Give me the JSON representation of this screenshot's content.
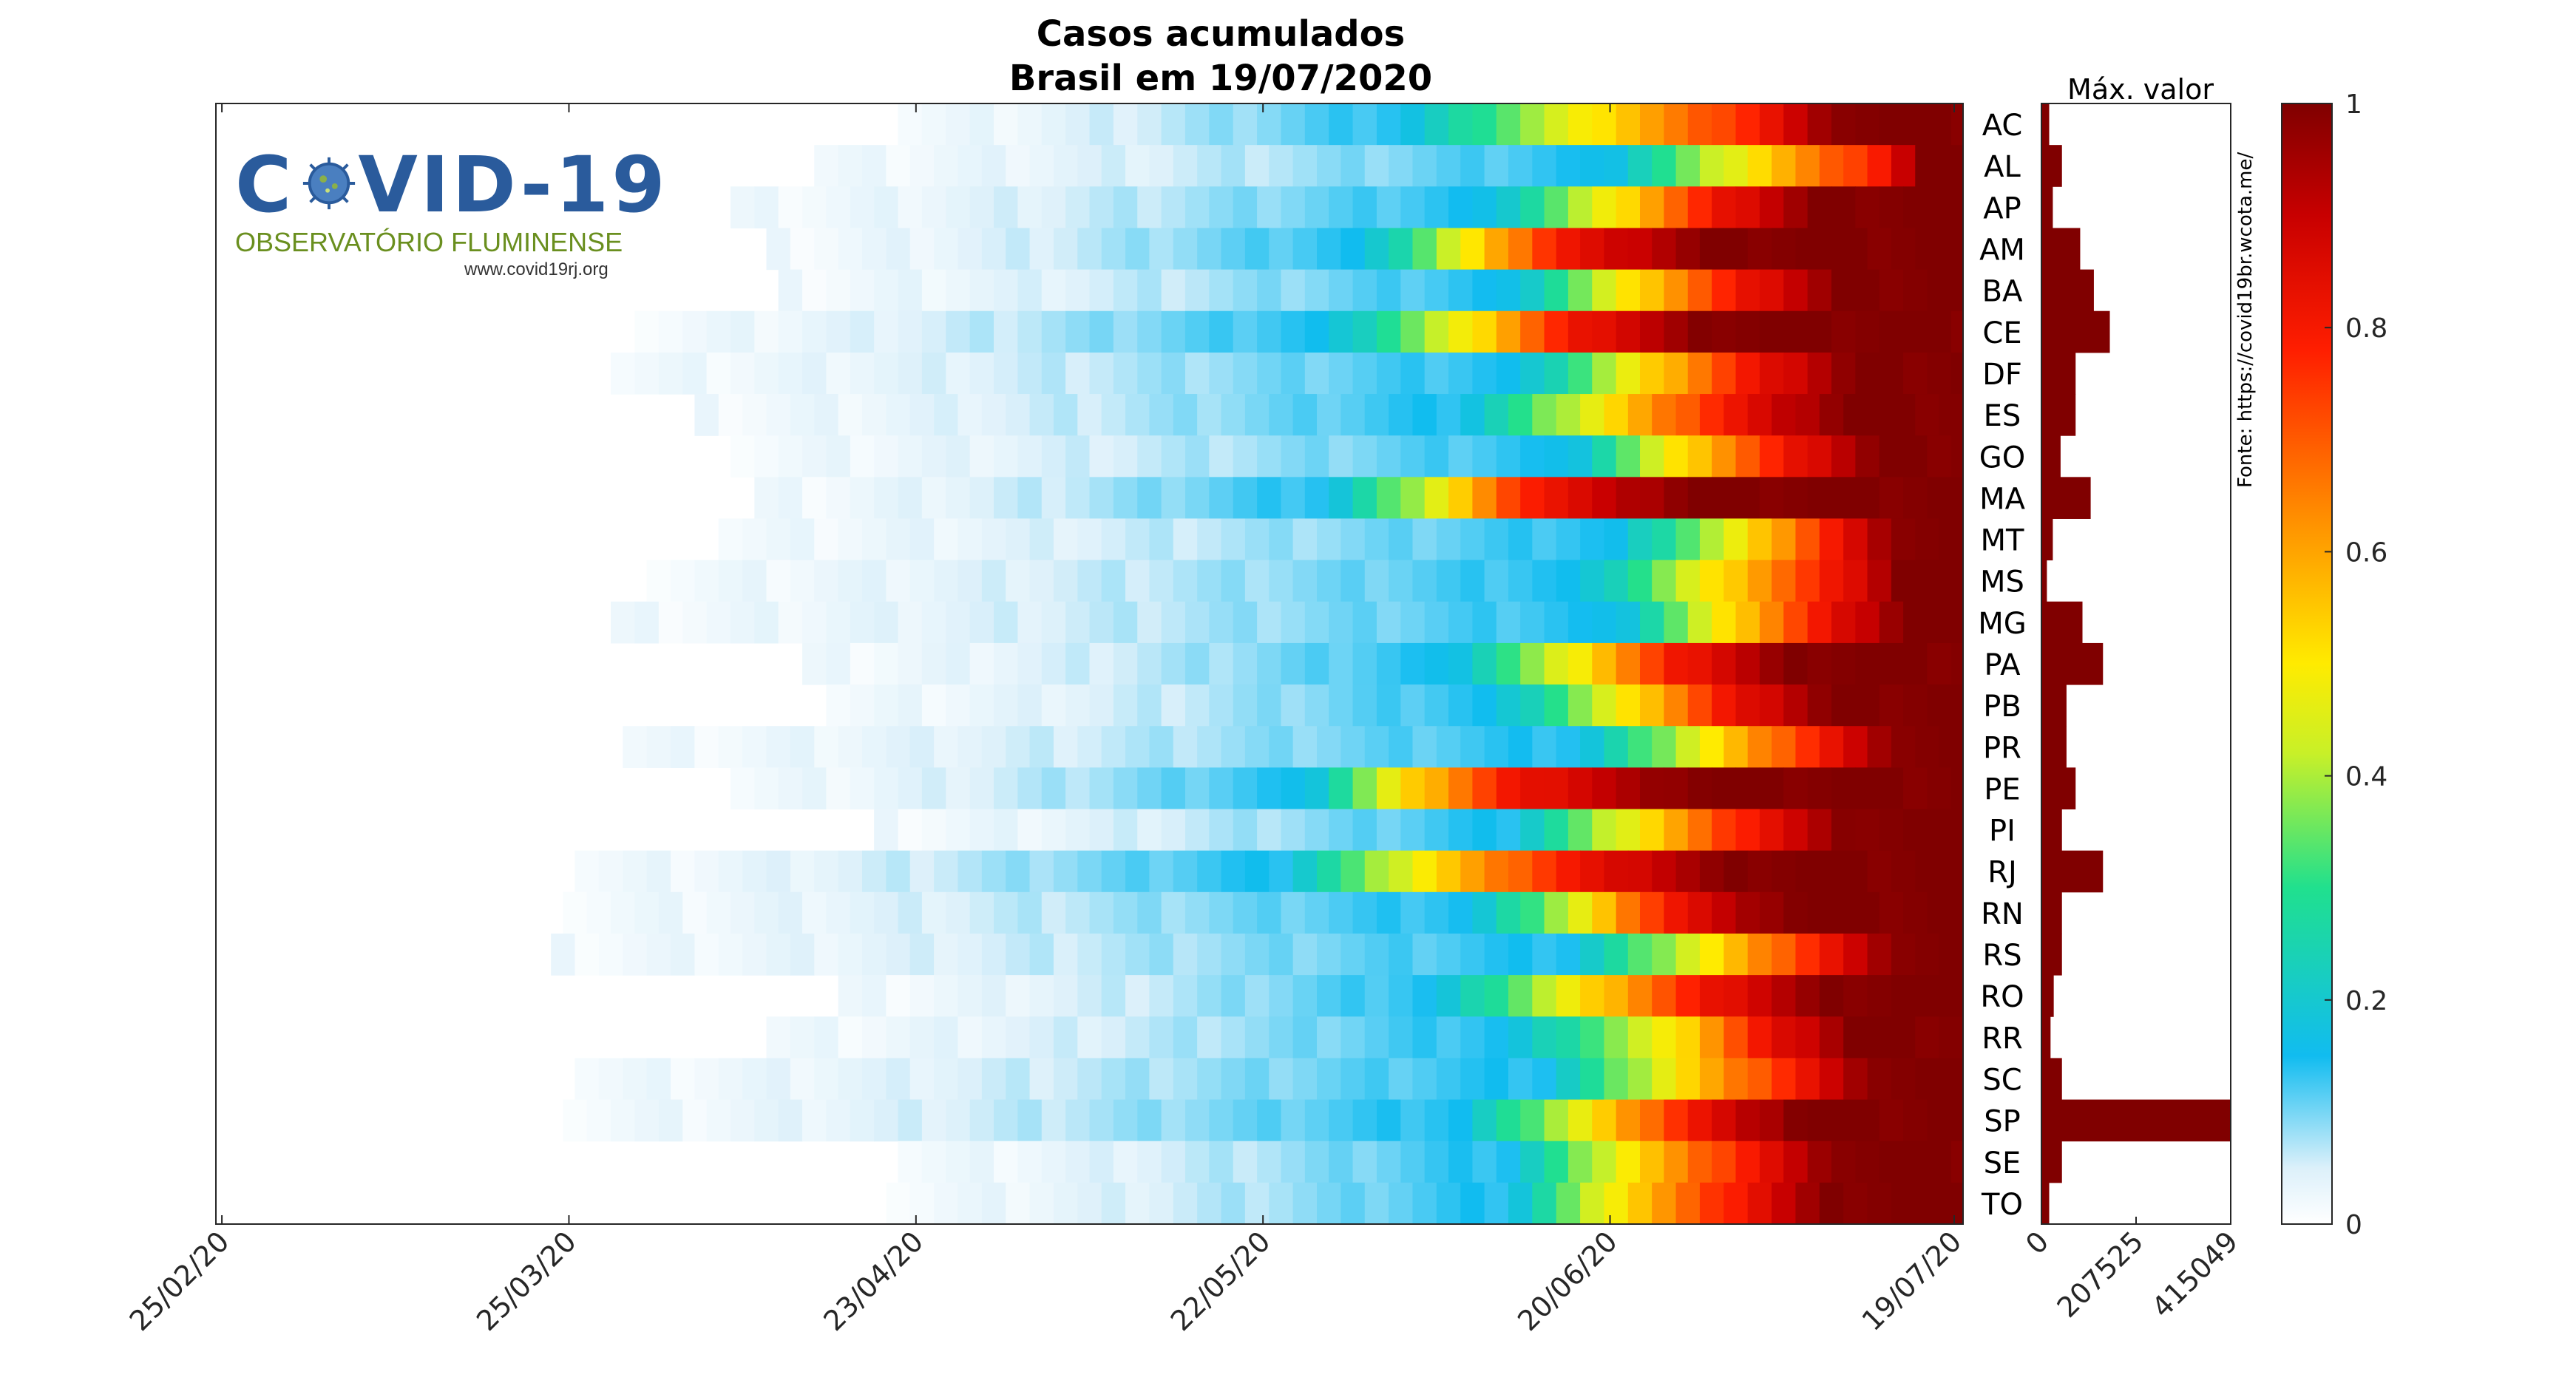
{
  "chart_data": {
    "type": "heatmap",
    "title": "Casos acumulados",
    "subtitle": "Brasil em 19/07/2020",
    "x_ticks": [
      "25/02/20",
      "25/03/20",
      "23/04/20",
      "22/05/20",
      "20/06/20",
      "19/07/20"
    ],
    "x_range": [
      "25/02/20",
      "19/07/20"
    ],
    "rows": [
      "AC",
      "AL",
      "AP",
      "AM",
      "BA",
      "CE",
      "DF",
      "ES",
      "GO",
      "MA",
      "MT",
      "MS",
      "MG",
      "PA",
      "PB",
      "PR",
      "PE",
      "PI",
      "RJ",
      "RN",
      "RS",
      "RO",
      "RR",
      "SC",
      "SP",
      "SE",
      "TO"
    ],
    "colorbar": {
      "label": "",
      "min": 0,
      "max": 1,
      "ticks": [
        "0",
        "0.2",
        "0.4",
        "0.6",
        "0.8",
        "1"
      ],
      "colormap": "jet-white"
    },
    "bar_panel": {
      "title": "Máx. valor",
      "ticks": [
        "0",
        "207525",
        "415049"
      ],
      "xlim": [
        0,
        415049
      ],
      "values": [
        17000,
        45000,
        25000,
        85000,
        115000,
        150000,
        75000,
        75000,
        42000,
        108000,
        25000,
        12000,
        90000,
        135000,
        55000,
        55000,
        75000,
        45000,
        135000,
        45000,
        45000,
        27000,
        20000,
        45000,
        415049,
        45000,
        17000
      ]
    },
    "onset_day": [
      57,
      50,
      43,
      46,
      47,
      35,
      33,
      40,
      43,
      45,
      42,
      36,
      33,
      49,
      51,
      34,
      43,
      55,
      30,
      29,
      28,
      52,
      46,
      30,
      29,
      57,
      56
    ],
    "cutoffs": [
      [
        98,
        114,
        128,
        135
      ],
      [
        115,
        127,
        138,
        142
      ],
      [
        105,
        116,
        124,
        133
      ],
      [
        95,
        104,
        111,
        124
      ],
      [
        107,
        117,
        126,
        135
      ],
      [
        92,
        104,
        112,
        124
      ],
      [
        108,
        118,
        127,
        136
      ],
      [
        103,
        115,
        125,
        135
      ],
      [
        112,
        121,
        130,
        138
      ],
      [
        92,
        102,
        109,
        122
      ],
      [
        116,
        127,
        134,
        140
      ],
      [
        113,
        124,
        134,
        140
      ],
      [
        116,
        125,
        133,
        140
      ],
      [
        102,
        113,
        121,
        131
      ],
      [
        106,
        117,
        125,
        134
      ],
      [
        113,
        124,
        133,
        140
      ],
      [
        90,
        98,
        107,
        122
      ],
      [
        107,
        118,
        127,
        136
      ],
      [
        88,
        100,
        112,
        126
      ],
      [
        104,
        114,
        120,
        130
      ],
      [
        112,
        124,
        133,
        140
      ],
      [
        101,
        113,
        123,
        134
      ],
      [
        107,
        121,
        128,
        136
      ],
      [
        110,
        121,
        131,
        138
      ],
      [
        103,
        114,
        122,
        131
      ],
      [
        107,
        117,
        127,
        135
      ],
      [
        107,
        116,
        126,
        134
      ]
    ],
    "source": "Fonte: https://covid19br.wcota.me/"
  },
  "logo": {
    "text_pre": "C",
    "text_post": "VID-19",
    "subtitle": "OBSERVATÓRIO FLUMINENSE",
    "url": "www.covid19rj.org"
  },
  "colors": {
    "logo_blue": "#2a5b9c",
    "logo_green": "#6a8f1f",
    "bar": "#800000"
  }
}
